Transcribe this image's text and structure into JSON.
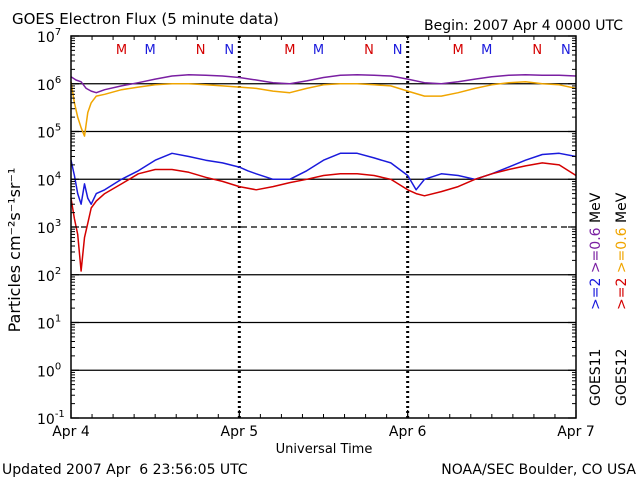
{
  "chart_data": {
    "type": "line",
    "title": "GOES Electron Flux (5 minute data)",
    "begin_label": "Begin: 2007 Apr 4 0000 UTC",
    "xlabel": "Universal Time",
    "ylabel": "Particles cm⁻²s⁻¹sr⁻¹",
    "footer_left": "Updated 2007 Apr  6 23:56:05 UTC",
    "footer_right": "NOAA/SEC Boulder, CO USA",
    "x_unit": "days since 2007 Apr 4 0000 UTC",
    "xlim": [
      0,
      3
    ],
    "x_ticks": [
      {
        "x": 0,
        "label": "Apr 4"
      },
      {
        "x": 1,
        "label": "Apr 5"
      },
      {
        "x": 2,
        "label": "Apr 6"
      },
      {
        "x": 3,
        "label": "Apr 7"
      }
    ],
    "y_scale": "log",
    "ylim_exp": [
      -1,
      7
    ],
    "y_ticks": [
      {
        "exp": 7,
        "label": "10",
        "sup": "7"
      },
      {
        "exp": 6,
        "label": "10",
        "sup": "6"
      },
      {
        "exp": 5,
        "label": "10",
        "sup": "5"
      },
      {
        "exp": 4,
        "label": "10",
        "sup": "4"
      },
      {
        "exp": 3,
        "label": "10",
        "sup": "3"
      },
      {
        "exp": 2,
        "label": "10",
        "sup": "2"
      },
      {
        "exp": 1,
        "label": "10",
        "sup": "1"
      },
      {
        "exp": 0,
        "label": "10",
        "sup": "0"
      },
      {
        "exp": -1,
        "label": "10",
        "sup": "-1"
      }
    ],
    "solid_hlines_exp": [
      6,
      5,
      4,
      2,
      1,
      0
    ],
    "dashed_hline_exp": 3,
    "mn_markers": [
      {
        "x": 0.3,
        "label": "M",
        "color": "#d40000"
      },
      {
        "x": 0.47,
        "label": "M",
        "color": "#1a1adc"
      },
      {
        "x": 0.77,
        "label": "N",
        "color": "#d40000"
      },
      {
        "x": 0.94,
        "label": "N",
        "color": "#1a1adc"
      },
      {
        "x": 1.3,
        "label": "M",
        "color": "#d40000"
      },
      {
        "x": 1.47,
        "label": "M",
        "color": "#1a1adc"
      },
      {
        "x": 1.77,
        "label": "N",
        "color": "#d40000"
      },
      {
        "x": 1.94,
        "label": "N",
        "color": "#1a1adc"
      },
      {
        "x": 2.3,
        "label": "M",
        "color": "#d40000"
      },
      {
        "x": 2.47,
        "label": "M",
        "color": "#1a1adc"
      },
      {
        "x": 2.77,
        "label": "N",
        "color": "#d40000"
      },
      {
        "x": 2.94,
        "label": "N",
        "color": "#1a1adc"
      }
    ],
    "legend": {
      "col1": [
        {
          "text": ">=2",
          "color": "#1a1adc"
        },
        {
          "text": ">=0.6",
          "color": "#7a1fa2"
        },
        {
          "text": "MeV",
          "color": "#000000"
        }
      ],
      "col2": [
        {
          "text": ">=2",
          "color": "#d40000"
        },
        {
          "text": ">=0.6",
          "color": "#f0a500"
        },
        {
          "text": "MeV",
          "color": "#000000"
        }
      ],
      "sat1": "GOES11",
      "sat2": "GOES12"
    },
    "series": [
      {
        "name": "GOES11 >=0.6 MeV",
        "color": "#7a1fa2",
        "x": [
          0.0,
          0.03,
          0.06,
          0.09,
          0.12,
          0.15,
          0.2,
          0.3,
          0.4,
          0.5,
          0.6,
          0.7,
          0.8,
          0.9,
          1.0,
          1.1,
          1.2,
          1.3,
          1.4,
          1.5,
          1.6,
          1.7,
          1.8,
          1.9,
          2.0,
          2.1,
          2.2,
          2.3,
          2.4,
          2.5,
          2.6,
          2.7,
          2.8,
          2.9,
          3.0
        ],
        "y": [
          1400000.0,
          1200000.0,
          1100000.0,
          800000.0,
          700000.0,
          650000.0,
          750000.0,
          900000.0,
          1050000.0,
          1250000.0,
          1450000.0,
          1550000.0,
          1500000.0,
          1450000.0,
          1350000.0,
          1200000.0,
          1050000.0,
          1000000.0,
          1150000.0,
          1350000.0,
          1500000.0,
          1550000.0,
          1500000.0,
          1450000.0,
          1250000.0,
          1050000.0,
          1000000.0,
          1100000.0,
          1250000.0,
          1400000.0,
          1500000.0,
          1550000.0,
          1500000.0,
          1500000.0,
          1450000.0
        ]
      },
      {
        "name": "GOES12 >=0.6 MeV",
        "color": "#f0a500",
        "x": [
          0.0,
          0.02,
          0.04,
          0.06,
          0.08,
          0.1,
          0.12,
          0.15,
          0.2,
          0.3,
          0.4,
          0.5,
          0.6,
          0.7,
          0.8,
          0.9,
          1.0,
          1.1,
          1.2,
          1.3,
          1.4,
          1.5,
          1.6,
          1.7,
          1.8,
          1.9,
          2.0,
          2.1,
          2.2,
          2.3,
          2.4,
          2.5,
          2.6,
          2.7,
          2.8,
          2.9,
          3.0
        ],
        "y": [
          1100000.0,
          400000.0,
          200000.0,
          120000.0,
          80000.0,
          250000.0,
          400000.0,
          550000.0,
          600000.0,
          750000.0,
          850000.0,
          950000.0,
          1000000.0,
          1000000.0,
          950000.0,
          900000.0,
          850000.0,
          800000.0,
          700000.0,
          650000.0,
          800000.0,
          950000.0,
          1000000.0,
          1000000.0,
          950000.0,
          900000.0,
          700000.0,
          550000.0,
          550000.0,
          650000.0,
          800000.0,
          950000.0,
          1050000.0,
          1100000.0,
          1000000.0,
          950000.0,
          800000.0
        ]
      },
      {
        "name": "GOES11 >=2 MeV",
        "color": "#1a1adc",
        "x": [
          0.0,
          0.02,
          0.04,
          0.06,
          0.08,
          0.1,
          0.12,
          0.15,
          0.2,
          0.3,
          0.4,
          0.5,
          0.6,
          0.7,
          0.8,
          0.9,
          1.0,
          1.05,
          1.1,
          1.2,
          1.3,
          1.4,
          1.5,
          1.6,
          1.7,
          1.8,
          1.9,
          2.0,
          2.05,
          2.1,
          2.2,
          2.3,
          2.4,
          2.5,
          2.6,
          2.7,
          2.8,
          2.9,
          3.0
        ],
        "y": [
          25000.0,
          12000.0,
          5000.0,
          3000.0,
          8000.0,
          4000.0,
          3000.0,
          5000.0,
          6000.0,
          10000.0,
          15000.0,
          25000.0,
          35000.0,
          30000.0,
          25000.0,
          22000.0,
          18000.0,
          15000.0,
          13000.0,
          10000.0,
          10000.0,
          15000.0,
          25000.0,
          35000.0,
          35000.0,
          28000.0,
          22000.0,
          12000.0,
          6000.0,
          10000.0,
          13000.0,
          12000.0,
          10000.0,
          13000.0,
          18000.0,
          25000.0,
          33000.0,
          35000.0,
          30000.0
        ]
      },
      {
        "name": "GOES12 >=2 MeV",
        "color": "#d40000",
        "x": [
          0.0,
          0.02,
          0.04,
          0.06,
          0.08,
          0.1,
          0.12,
          0.15,
          0.2,
          0.3,
          0.4,
          0.5,
          0.6,
          0.7,
          0.8,
          0.9,
          1.0,
          1.1,
          1.2,
          1.3,
          1.4,
          1.5,
          1.6,
          1.7,
          1.8,
          1.9,
          2.0,
          2.05,
          2.1,
          2.2,
          2.3,
          2.4,
          2.5,
          2.6,
          2.7,
          2.8,
          2.9,
          3.0
        ],
        "y": [
          4000.0,
          1500.0,
          700,
          120,
          600,
          1200.0,
          2500.0,
          3500.0,
          5000.0,
          8000.0,
          13000.0,
          16000.0,
          16000.0,
          14000.0,
          11000.0,
          9000.0,
          7000.0,
          6000.0,
          7000.0,
          8500.0,
          10000.0,
          12000.0,
          13000.0,
          13000.0,
          12000.0,
          10000.0,
          6000.0,
          5000.0,
          4500.0,
          5500.0,
          7000.0,
          10000.0,
          13000.0,
          16000.0,
          19000.0,
          22000.0,
          20000.0,
          12000.0
        ]
      }
    ]
  }
}
